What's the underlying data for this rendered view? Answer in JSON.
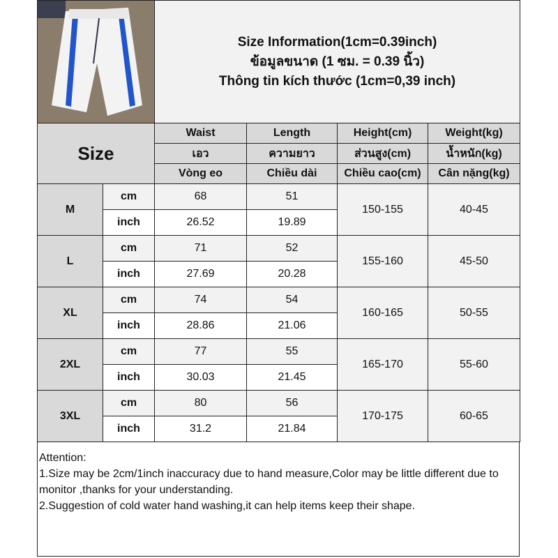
{
  "title_lines": [
    "Size Information(1cm=0.39inch)",
    "ข้อมูลขนาด (1 ซม. = 0.39 นิ้ว)",
    "Thông tin kích thước (1cm=0,39 inch)"
  ],
  "size_label": "Size",
  "headers": [
    [
      "Waist",
      "Length",
      "Height(cm)",
      "Weight(kg)"
    ],
    [
      "เอว",
      "ความยาว",
      "ส่วนสูง(cm)",
      "น้ำหนัก(kg)"
    ],
    [
      "Vòng eo",
      "Chiều dài",
      "Chiều cao(cm)",
      "Cân nặng(kg)"
    ]
  ],
  "units": [
    "cm",
    "inch"
  ],
  "rows": [
    {
      "size": "M",
      "cm": [
        "68",
        "51"
      ],
      "inch": [
        "26.52",
        "19.89"
      ],
      "height": "150-155",
      "weight": "40-45"
    },
    {
      "size": "L",
      "cm": [
        "71",
        "52"
      ],
      "inch": [
        "27.69",
        "20.28"
      ],
      "height": "155-160",
      "weight": "45-50"
    },
    {
      "size": "XL",
      "cm": [
        "74",
        "54"
      ],
      "inch": [
        "28.86",
        "21.06"
      ],
      "height": "160-165",
      "weight": "50-55"
    },
    {
      "size": "2XL",
      "cm": [
        "77",
        "55"
      ],
      "inch": [
        "30.03",
        "21.45"
      ],
      "height": "165-170",
      "weight": "55-60"
    },
    {
      "size": "3XL",
      "cm": [
        "80",
        "56"
      ],
      "inch": [
        "31.2",
        "21.84"
      ],
      "height": "170-175",
      "weight": "60-65"
    }
  ],
  "attention": [
    "Attention:",
    "1.Size may be 2cm/1inch inaccuracy due to hand measure,Color may be little different due to monitor ,thanks for your understanding.",
    "2.Suggestion of cold water hand washing,it can help items keep their shape."
  ]
}
